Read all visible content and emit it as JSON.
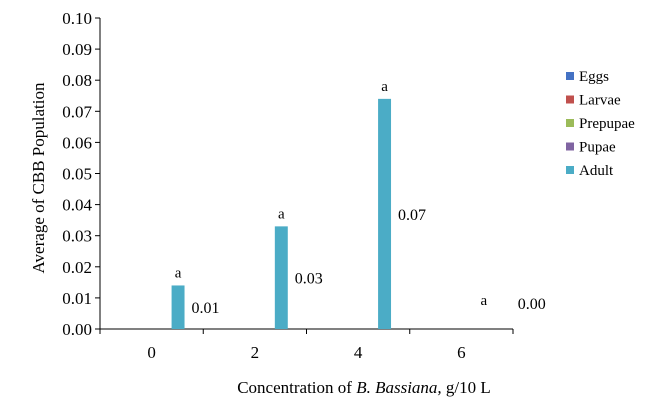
{
  "chart_data": {
    "type": "bar",
    "x_title_parts": [
      {
        "text": "Concentration of ",
        "italic": false
      },
      {
        "text": "B. Bassiana,",
        "italic": true
      },
      {
        "text": " g/10 L",
        "italic": false
      }
    ],
    "ylabel": "Average of CBB Population",
    "ylim": [
      0,
      0.1
    ],
    "y_ticks": [
      "0.00",
      "0.01",
      "0.02",
      "0.03",
      "0.04",
      "0.05",
      "0.06",
      "0.07",
      "0.08",
      "0.09",
      "0.10"
    ],
    "categories": [
      "0",
      "2",
      "4",
      "6"
    ],
    "series": [
      {
        "name": "Eggs",
        "color": "#4472C4",
        "values": [
          0,
          0,
          0,
          0
        ]
      },
      {
        "name": "Larvae",
        "color": "#C0504D",
        "values": [
          0,
          0,
          0,
          0
        ]
      },
      {
        "name": "Prepupae",
        "color": "#9BBB59",
        "values": [
          0,
          0,
          0,
          0
        ]
      },
      {
        "name": "Pupae",
        "color": "#8064A2",
        "values": [
          0,
          0,
          0,
          0
        ]
      },
      {
        "name": "Adult",
        "color": "#4BACC6",
        "values": [
          0.014,
          0.033,
          0.074,
          0.0
        ]
      }
    ],
    "value_labels": [
      "0.01",
      "0.03",
      "0.07",
      "0.00"
    ],
    "group_letters": [
      "a",
      "a",
      "a",
      "a"
    ],
    "legend_position": "right",
    "grid": false
  }
}
